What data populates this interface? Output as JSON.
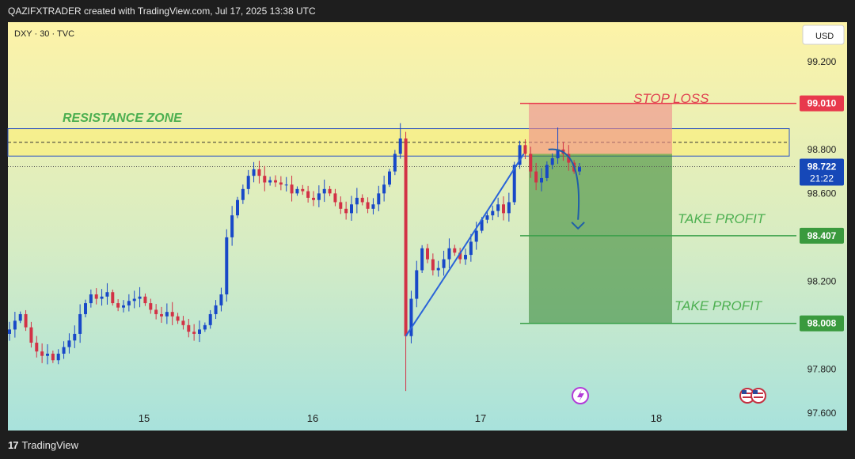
{
  "header": {
    "caption": "QAZIFXTRADER created with TradingView.com, Jul 17, 2025 13:38 UTC"
  },
  "footer": {
    "brand": "TradingView",
    "logo_icon": "tradingview-logo-icon"
  },
  "symbol_label": "DXY · 30 · TVC",
  "currency_button": "USD",
  "colors": {
    "up": "#1848c8",
    "down": "#d23246",
    "stop_line": "#e8394c",
    "tp_line": "#3aa04a",
    "resistance_text": "#4caf50",
    "stop_text": "#e04050",
    "tp_text": "#4caf50",
    "zone_border": "#2b52c0",
    "price_badge": "#1648b8"
  },
  "chart_data": {
    "type": "candlestick",
    "symbol": "DXY",
    "timeframe": "30",
    "source": "TVC",
    "y_ticks": [
      "99.200",
      "98.800",
      "98.600",
      "98.200",
      "97.800",
      "97.600"
    ],
    "ylim": [
      97.52,
      99.38
    ],
    "x_ticks": [
      "15",
      "16",
      "17",
      "18"
    ],
    "current_price": {
      "price": "98.722",
      "countdown": "21:22",
      "value": 98.722
    },
    "levels": {
      "stop_loss": {
        "label": "STOP LOSS",
        "price": "99.010",
        "value": 99.01
      },
      "take_profit_1": {
        "label": "TAKE PROFIT",
        "price": "98.407",
        "value": 98.407
      },
      "take_profit_2": {
        "label": "TAKE PROFIT",
        "price": "98.008",
        "value": 98.008
      }
    },
    "resistance_zone": {
      "label": "RESISTANCE ZONE",
      "top": 98.895,
      "bottom": 98.77
    },
    "position": {
      "type": "short",
      "entry": 98.78,
      "stop": 99.01,
      "target": 98.008
    },
    "closes": [
      97.98,
      98.02,
      98.05,
      97.99,
      97.92,
      97.88,
      97.86,
      97.87,
      97.84,
      97.87,
      97.9,
      97.93,
      97.96,
      98.05,
      98.1,
      98.14,
      98.12,
      98.13,
      98.15,
      98.1,
      98.08,
      98.09,
      98.11,
      98.12,
      98.13,
      98.1,
      98.07,
      98.05,
      98.04,
      98.06,
      98.04,
      98.02,
      98.0,
      97.97,
      97.96,
      97.98,
      98.0,
      98.05,
      98.09,
      98.14,
      98.4,
      98.5,
      98.57,
      98.62,
      98.68,
      98.71,
      98.68,
      98.65,
      98.66,
      98.65,
      98.64,
      98.64,
      98.6,
      98.62,
      98.61,
      98.58,
      98.57,
      98.6,
      98.62,
      98.6,
      98.56,
      98.53,
      98.51,
      98.55,
      98.58,
      98.56,
      98.53,
      98.55,
      98.6,
      98.64,
      98.7,
      98.78,
      98.85,
      97.95,
      98.12,
      98.25,
      98.35,
      98.3,
      98.25,
      98.26,
      98.3,
      98.35,
      98.33,
      98.3,
      98.32,
      98.38,
      98.43,
      98.48,
      98.5,
      98.52,
      98.55,
      98.51,
      98.56,
      98.73,
      98.82,
      98.78,
      98.7,
      98.65,
      98.67,
      98.73,
      98.76,
      98.8,
      98.78,
      98.74,
      98.7,
      98.72
    ],
    "start_open": 97.96
  }
}
